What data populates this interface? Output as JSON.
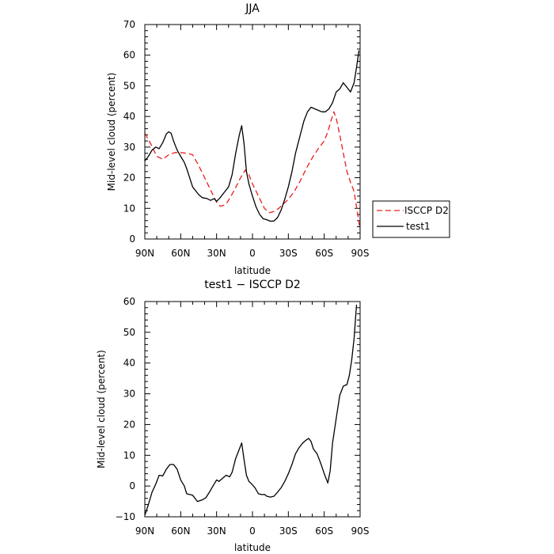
{
  "chart_data": [
    {
      "type": "line",
      "title": "JJA",
      "xlabel": "latitude",
      "ylabel": "Mid-level cloud (percent)",
      "xlim": [
        90,
        -90
      ],
      "ylim": [
        0,
        70
      ],
      "x_ticks": [
        90,
        60,
        30,
        0,
        -30,
        -60,
        -90
      ],
      "x_tick_labels": [
        "90N",
        "60N",
        "30N",
        "0",
        "30S",
        "60S",
        "90S"
      ],
      "y_ticks": [
        0,
        10,
        20,
        30,
        40,
        50,
        60,
        70
      ],
      "y_tick_labels": [
        "0",
        "10",
        "20",
        "30",
        "40",
        "50",
        "60",
        "70"
      ],
      "grid": false,
      "legend": {
        "position": "right, outside plot"
      },
      "series": [
        {
          "name": "ISCCP D2",
          "color": "#e8201c",
          "dash": "dashed",
          "points": [
            [
              90,
              34.5
            ],
            [
              85,
              31
            ],
            [
              80,
              27
            ],
            [
              75,
              26
            ],
            [
              70,
              27.5
            ],
            [
              65,
              28.2
            ],
            [
              60,
              28.2
            ],
            [
              55,
              28
            ],
            [
              50,
              27.5
            ],
            [
              45,
              24
            ],
            [
              40,
              20
            ],
            [
              35,
              16
            ],
            [
              30,
              12
            ],
            [
              27,
              10.7
            ],
            [
              24,
              11
            ],
            [
              21,
              12
            ],
            [
              15,
              16
            ],
            [
              10,
              20
            ],
            [
              6,
              22.5
            ],
            [
              3,
              21
            ],
            [
              0,
              18
            ],
            [
              -5,
              14
            ],
            [
              -10,
              10
            ],
            [
              -14,
              8.6
            ],
            [
              -18,
              9
            ],
            [
              -22,
              10
            ],
            [
              -26,
              11.5
            ],
            [
              -30,
              13
            ],
            [
              -35,
              15.5
            ],
            [
              -40,
              19
            ],
            [
              -45,
              23
            ],
            [
              -50,
              26.5
            ],
            [
              -55,
              29.5
            ],
            [
              -60,
              32
            ],
            [
              -63,
              35
            ],
            [
              -66,
              39
            ],
            [
              -68,
              41.5
            ],
            [
              -70,
              39.5
            ],
            [
              -73,
              34
            ],
            [
              -76,
              28
            ],
            [
              -79,
              22
            ],
            [
              -82,
              18.5
            ],
            [
              -85,
              15.5
            ],
            [
              -88,
              8
            ],
            [
              -90,
              3
            ]
          ]
        },
        {
          "name": "test1",
          "color": "#000000",
          "dash": "solid",
          "points": [
            [
              90,
              25.5
            ],
            [
              87,
              27
            ],
            [
              84,
              29
            ],
            [
              81,
              30
            ],
            [
              78,
              29.5
            ],
            [
              75,
              31.5
            ],
            [
              72,
              34.3
            ],
            [
              70,
              35
            ],
            [
              68,
              34.5
            ],
            [
              66,
              32
            ],
            [
              63,
              29
            ],
            [
              60,
              27
            ],
            [
              57,
              25
            ],
            [
              55,
              23
            ],
            [
              50,
              17
            ],
            [
              45,
              14.5
            ],
            [
              42,
              13.5
            ],
            [
              38,
              13.2
            ],
            [
              35,
              12.6
            ],
            [
              32,
              13.2
            ],
            [
              30,
              12.3
            ],
            [
              27,
              13.5
            ],
            [
              24,
              15
            ],
            [
              20,
              17
            ],
            [
              17,
              21
            ],
            [
              14,
              28
            ],
            [
              11,
              34
            ],
            [
              9,
              37
            ],
            [
              7,
              31
            ],
            [
              5,
              22
            ],
            [
              3,
              18
            ],
            [
              0,
              14
            ],
            [
              -3,
              10.5
            ],
            [
              -6,
              8
            ],
            [
              -9,
              6.6
            ],
            [
              -12,
              6.3
            ],
            [
              -15,
              5.8
            ],
            [
              -18,
              5.9
            ],
            [
              -21,
              7
            ],
            [
              -24,
              9.5
            ],
            [
              -27,
              13
            ],
            [
              -30,
              17
            ],
            [
              -33,
              22
            ],
            [
              -36,
              28
            ],
            [
              -40,
              34
            ],
            [
              -43,
              38.5
            ],
            [
              -46,
              41.5
            ],
            [
              -49,
              43
            ],
            [
              -52,
              42.5
            ],
            [
              -55,
              42
            ],
            [
              -58,
              41.5
            ],
            [
              -61,
              41.5
            ],
            [
              -64,
              42.5
            ],
            [
              -67,
              44.5
            ],
            [
              -70,
              48
            ],
            [
              -73,
              49
            ],
            [
              -76,
              51
            ],
            [
              -79,
              49.5
            ],
            [
              -82,
              48
            ],
            [
              -85,
              51
            ],
            [
              -87,
              56
            ],
            [
              -89,
              61.5
            ]
          ]
        }
      ]
    },
    {
      "type": "line",
      "title": "test1 − ISCCP D2",
      "xlabel": "latitude",
      "ylabel": "Mid-level cloud (percent)",
      "xlim": [
        90,
        -90
      ],
      "ylim": [
        -10,
        60
      ],
      "x_ticks": [
        90,
        60,
        30,
        0,
        -30,
        -60,
        -90
      ],
      "x_tick_labels": [
        "90N",
        "60N",
        "30N",
        "0",
        "30S",
        "60S",
        "90S"
      ],
      "y_ticks": [
        -10,
        0,
        10,
        20,
        30,
        40,
        50,
        60
      ],
      "y_tick_labels": [
        "−10",
        "0",
        "10",
        "20",
        "30",
        "40",
        "50",
        "60"
      ],
      "grid": false,
      "series": [
        {
          "color": "#000000",
          "dash": "solid",
          "points": [
            [
              90,
              -9.5
            ],
            [
              87,
              -6
            ],
            [
              84,
              -2
            ],
            [
              81,
              0.5
            ],
            [
              78,
              3.5
            ],
            [
              75,
              3.3
            ],
            [
              72,
              5.5
            ],
            [
              69,
              7
            ],
            [
              66,
              7
            ],
            [
              63,
              5.5
            ],
            [
              60,
              2
            ],
            [
              57,
              0
            ],
            [
              55,
              -2.5
            ],
            [
              50,
              -3
            ],
            [
              46,
              -5
            ],
            [
              42,
              -4.5
            ],
            [
              39,
              -3.8
            ],
            [
              36,
              -2
            ],
            [
              33,
              0
            ],
            [
              30,
              2
            ],
            [
              28,
              1.5
            ],
            [
              25,
              2.5
            ],
            [
              22,
              3.5
            ],
            [
              19,
              3
            ],
            [
              17,
              4.5
            ],
            [
              14,
              9
            ],
            [
              11,
              12
            ],
            [
              9,
              14
            ],
            [
              7,
              8.5
            ],
            [
              5,
              3.5
            ],
            [
              3,
              1.5
            ],
            [
              1,
              0.8
            ],
            [
              -2,
              -0.5
            ],
            [
              -5,
              -2.5
            ],
            [
              -8,
              -2.8
            ],
            [
              -10,
              -2.7
            ],
            [
              -12,
              -3.3
            ],
            [
              -15,
              -3.6
            ],
            [
              -18,
              -3.3
            ],
            [
              -21,
              -2
            ],
            [
              -24,
              -0.5
            ],
            [
              -27,
              1.5
            ],
            [
              -30,
              4
            ],
            [
              -33,
              7
            ],
            [
              -36,
              10.5
            ],
            [
              -39,
              12.5
            ],
            [
              -42,
              14
            ],
            [
              -45,
              15
            ],
            [
              -47,
              15.5
            ],
            [
              -49,
              14.5
            ],
            [
              -51,
              12
            ],
            [
              -54,
              10.5
            ],
            [
              -57,
              7.5
            ],
            [
              -60,
              4
            ],
            [
              -63,
              1
            ],
            [
              -65,
              5
            ],
            [
              -67,
              14
            ],
            [
              -70,
              22
            ],
            [
              -73,
              29.5
            ],
            [
              -76,
              32.5
            ],
            [
              -79,
              33
            ],
            [
              -81,
              36
            ],
            [
              -83,
              41
            ],
            [
              -85,
              48
            ],
            [
              -87,
              59
            ]
          ]
        }
      ]
    }
  ]
}
